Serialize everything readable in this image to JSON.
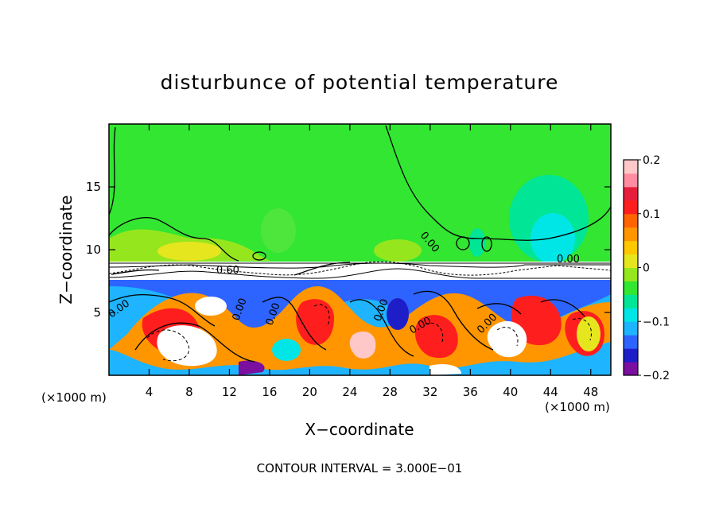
{
  "chart_data": {
    "type": "heatmap",
    "title": "disturbunce of potential temperature",
    "xlabel": "X−coordinate",
    "ylabel": "Z−coordinate",
    "x_unit_left": "(×1000 m)",
    "x_unit_right": "(×1000 m)",
    "footer": "CONTOUR INTERVAL = 3.000E−01",
    "xlim": [
      0,
      50
    ],
    "ylim": [
      0,
      20
    ],
    "x_ticks": [
      4,
      8,
      12,
      16,
      20,
      24,
      28,
      32,
      36,
      40,
      44,
      48
    ],
    "y_ticks": [
      5,
      10,
      15
    ],
    "x_tick_labels": [
      "4",
      "8",
      "12",
      "16",
      "20",
      "24",
      "28",
      "32",
      "36",
      "40",
      "44",
      "48"
    ],
    "y_tick_labels": [
      "5",
      "10",
      "15"
    ],
    "colorbar": {
      "range": [
        -0.2,
        0.2
      ],
      "ticks": [
        0.2,
        0.1,
        0,
        -0.1,
        -0.2
      ],
      "tick_labels": [
        "0.2",
        "0.1",
        "0",
        "−0.1",
        "−0.2"
      ],
      "colors": [
        "#7a0fa0",
        "#1e1ec8",
        "#2d64ff",
        "#1eb4ff",
        "#00e6e6",
        "#00e696",
        "#32e632",
        "#96e61e",
        "#e6e61e",
        "#ffc800",
        "#ff9600",
        "#ff6400",
        "#ff1e1e",
        "#e61e3c",
        "#ff8ca0",
        "#ffc8c8"
      ]
    },
    "contour_labels": [
      "0.00",
      "0.00",
      "0.00",
      "0.00",
      "0.00",
      "0.00",
      "0.00",
      "0.00",
      "0.60"
    ],
    "background_color": "#32e632"
  }
}
